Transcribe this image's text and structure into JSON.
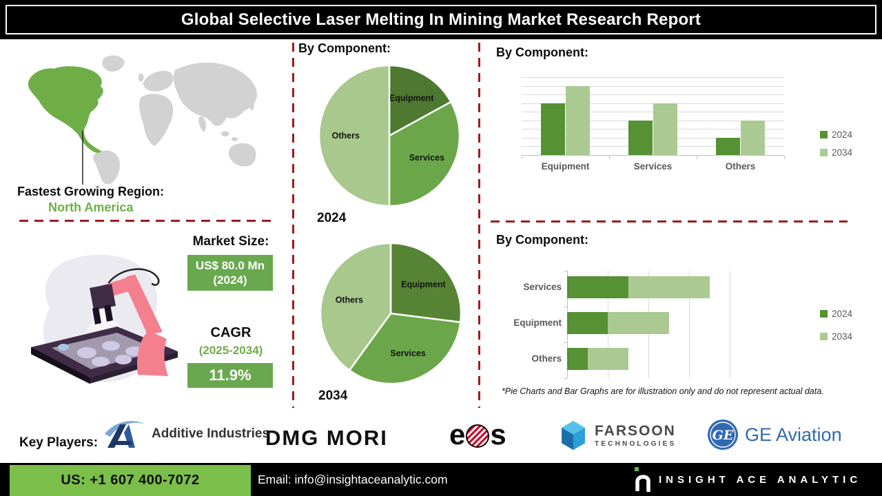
{
  "title": "Global Selective Laser Melting In Mining Market Research Report",
  "fastest_region": {
    "label": "Fastest Growing Region:",
    "value": "North America"
  },
  "market_size": {
    "heading": "Market Size:",
    "value_line1": "US$ 80.0 Mn",
    "value_line2": "(2024)",
    "cagr_heading": "CAGR",
    "cagr_period": "(2025-2034)",
    "cagr_value": "11.9%"
  },
  "chart_data": [
    {
      "type": "pie",
      "title": "By Component:",
      "year_label": "2024",
      "slices": [
        {
          "label": "Equipment",
          "value": 17,
          "color": "#4d7930"
        },
        {
          "label": "Services",
          "value": 33,
          "color": "#6ba74a"
        },
        {
          "label": "Others",
          "value": 50,
          "color": "#a8c88e"
        }
      ]
    },
    {
      "type": "pie",
      "title": "By Component:",
      "year_label": "2034",
      "slices": [
        {
          "label": "Equipment",
          "value": 27,
          "color": "#568434"
        },
        {
          "label": "Services",
          "value": 33,
          "color": "#6ba74a"
        },
        {
          "label": "Others",
          "value": 40,
          "color": "#a8c88e"
        }
      ]
    },
    {
      "type": "bar",
      "title": "By Component:",
      "categories": [
        "Equipment",
        "Services",
        "Others"
      ],
      "series": [
        {
          "name": "2024",
          "color": "#569133",
          "values": [
            75,
            50,
            25
          ]
        },
        {
          "name": "2034",
          "color": "#abca92",
          "values": [
            100,
            75,
            50
          ]
        }
      ],
      "ylim": [
        0,
        112.5
      ],
      "grid": true,
      "legend_position": "right"
    },
    {
      "type": "stacked-hbar",
      "title": "By Component:",
      "categories": [
        "Services",
        "Equipment",
        "Others"
      ],
      "series": [
        {
          "name": "2024",
          "color": "#569133",
          "values": [
            1.5,
            1.0,
            0.5
          ]
        },
        {
          "name": "2034",
          "color": "#abca92",
          "values": [
            2.0,
            1.5,
            1.0
          ]
        }
      ],
      "xlim": [
        0,
        4.5
      ],
      "grid": true,
      "legend_position": "right"
    }
  ],
  "disclaimer": "*Pie Charts and Bar Graphs are for illustration only and do not represent actual data.",
  "key_players": {
    "label": "Key Players:",
    "logos": {
      "additive": "Additive Industries",
      "dmg": "DMG MORI",
      "eos_left": "e",
      "eos_right": "s",
      "farsoon_line1": "FARSOON",
      "farsoon_line2": "TECHNOLOGIES",
      "ge_monogram": "GE",
      "ge": "GE Aviation"
    }
  },
  "footer": {
    "phone": "US: +1 607 400-7072",
    "email": "Email: info@insightaceanalytic.com",
    "brand": "INSIGHT ACE ANALYTIC"
  },
  "colors": {
    "accent_green": "#6fae47",
    "dark_green": "#4d7930",
    "mid_green": "#6ba74a",
    "light_green": "#a8c88e",
    "box_green": "#69a84f",
    "footer_green": "#7bbf4a",
    "dashed_red": "#9e1b1e",
    "map_gray": "#d2d2d2"
  }
}
